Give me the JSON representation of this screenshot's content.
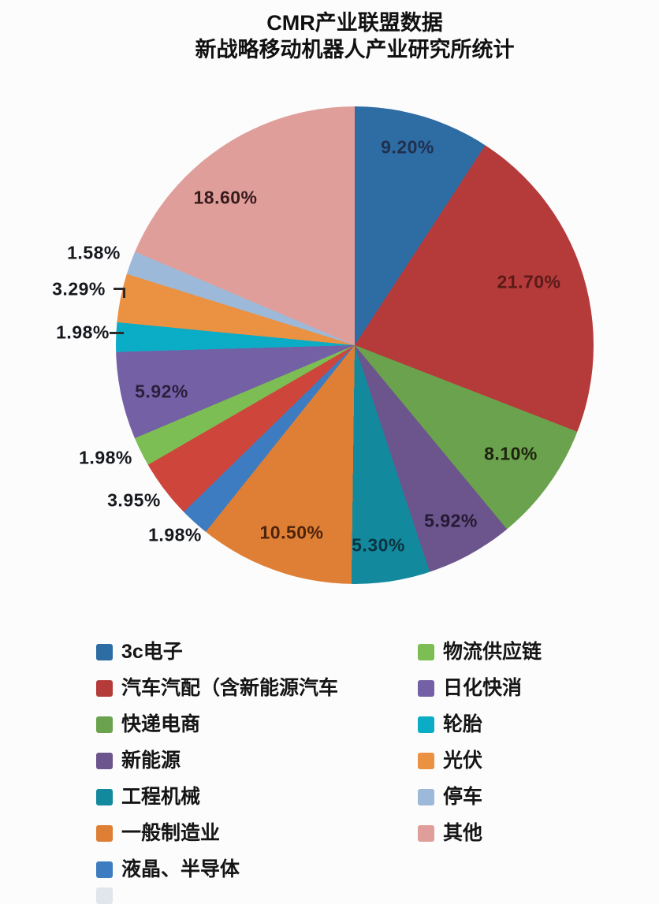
{
  "title": {
    "line1": "CMR产业联盟数据",
    "line2": "新战略移动机器人产业研究所统计"
  },
  "chart_data": {
    "type": "pie",
    "title": "CMR产业联盟数据 新战略移动机器人产业研究所统计",
    "start_angle_deg": 0,
    "direction": "clockwise",
    "legend_position": "bottom, two columns",
    "slices": [
      {
        "label": "3c电子",
        "value": 9.2,
        "pct_label": "9.20%",
        "color": "#2E6CA4",
        "label_placement": "inside"
      },
      {
        "label": "汽车汽配（含新能源汽车",
        "value": 21.7,
        "pct_label": "21.70%",
        "color": "#B53B3B",
        "label_placement": "inside"
      },
      {
        "label": "快递电商",
        "value": 8.1,
        "pct_label": "8.10%",
        "color": "#6BA24D",
        "label_placement": "inside"
      },
      {
        "label": "新能源",
        "value": 5.92,
        "pct_label": "5.92%",
        "color": "#6C548C",
        "label_placement": "inside"
      },
      {
        "label": "工程机械",
        "value": 5.3,
        "pct_label": "5.30%",
        "color": "#13899E",
        "label_placement": "inside"
      },
      {
        "label": "一般制造业",
        "value": 10.5,
        "pct_label": "10.50%",
        "color": "#DF7F35",
        "label_placement": "inside"
      },
      {
        "label": "液晶、半导体",
        "value": 1.98,
        "pct_label": "1.98%",
        "color": "#3E7CC1",
        "label_placement": "outside"
      },
      {
        "label": "",
        "value": 3.95,
        "pct_label": "3.95%",
        "color": "#CE453C",
        "label_placement": "outside",
        "legend_visible": false
      },
      {
        "label": "物流供应链",
        "value": 1.98,
        "pct_label": "1.98%",
        "color": "#7CBE53",
        "label_placement": "outside"
      },
      {
        "label": "日化快消",
        "value": 5.92,
        "pct_label": "5.92%",
        "color": "#7460A5",
        "label_placement": "inside"
      },
      {
        "label": "轮胎",
        "value": 1.98,
        "pct_label": "1.98%",
        "color": "#0BACC6",
        "label_placement": "outside-leader"
      },
      {
        "label": "光伏",
        "value": 3.29,
        "pct_label": "3.29%",
        "color": "#EB9142",
        "label_placement": "outside-leader"
      },
      {
        "label": "停车",
        "value": 1.58,
        "pct_label": "1.58%",
        "color": "#9DB9D9",
        "label_placement": "outside"
      },
      {
        "label": "其他",
        "value": 18.6,
        "pct_label": "18.60%",
        "color": "#E09E9B",
        "label_placement": "inside"
      }
    ]
  },
  "legend": {
    "columns": [
      {
        "items": [
          {
            "label": "3c电子",
            "color": "#2E6CA4"
          },
          {
            "label": "汽车汽配（含新能源汽车",
            "color": "#B53B3B"
          },
          {
            "label": "快递电商",
            "color": "#6BA24D"
          },
          {
            "label": "新能源",
            "color": "#6C548C"
          },
          {
            "label": "工程机械",
            "color": "#13899E"
          },
          {
            "label": "一般制造业",
            "color": "#DF7F35"
          },
          {
            "label": "液晶、半导体",
            "color": "#3E7CC1"
          }
        ]
      },
      {
        "items": [
          {
            "label": "物流供应链",
            "color": "#7CBE53"
          },
          {
            "label": "日化快消",
            "color": "#7460A5"
          },
          {
            "label": "轮胎",
            "color": "#0BACC6"
          },
          {
            "label": "光伏",
            "color": "#EB9142"
          },
          {
            "label": "停车",
            "color": "#9DB9D9"
          },
          {
            "label": "其他",
            "color": "#E09E9B"
          }
        ]
      }
    ]
  }
}
